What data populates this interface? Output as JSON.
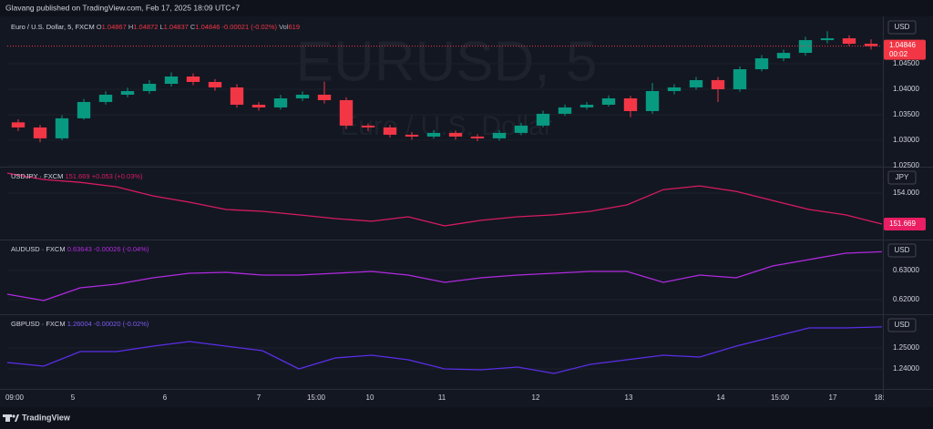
{
  "header": {
    "text": "Glavang published on TradingView.com, Feb 17, 2025 18:09 UTC+7"
  },
  "watermark": {
    "symbol": "EURUSD, 5",
    "description": "Euro / U.S. Dollar"
  },
  "footer": {
    "brand": "TradingView"
  },
  "time_axis": {
    "labels": [
      "09:00",
      "5",
      "6",
      "7",
      "15:00",
      "10",
      "11",
      "12",
      "13",
      "14",
      "15:00",
      "17",
      "18:"
    ]
  },
  "chart_data": [
    {
      "type": "candlestick",
      "title": "Euro / U.S. Dollar, 5, FXCM",
      "currency": "USD",
      "legend": {
        "o_label": "O",
        "open": 1.04867,
        "h_label": "H",
        "high": 1.04872,
        "l_label": "L",
        "low": 1.04837,
        "c_label": "C",
        "close": 1.04846,
        "change": "-0.00021 (-0.02%)",
        "vol_label": "Vol",
        "volume": 619
      },
      "last_price": 1.04846,
      "countdown": "00:02",
      "up_color": "#089981",
      "down_color": "#f23645",
      "open": [
        1.0335,
        1.0325,
        1.03036,
        1.03429,
        1.0375,
        1.03893,
        1.03964,
        1.04107,
        1.0425,
        1.04143,
        1.04036,
        1.03696,
        1.03643,
        1.03821,
        1.03893,
        1.03786,
        1.03286,
        1.0325,
        1.03107,
        1.03071,
        1.03143,
        1.03071,
        1.03036,
        1.03143,
        1.03286,
        1.03518,
        1.03643,
        1.03696,
        1.03821,
        1.03571,
        1.03964,
        1.04036,
        1.04179,
        1.04,
        1.04393,
        1.04607,
        1.04714,
        1.04964,
        1.05,
        1.04893
      ],
      "high": [
        1.0341,
        1.033,
        1.0349,
        1.0381,
        1.0396,
        1.0403,
        1.0418,
        1.0433,
        1.0431,
        1.042,
        1.041,
        1.0375,
        1.0389,
        1.0396,
        1.0415,
        1.0384,
        1.0333,
        1.033,
        1.0316,
        1.032,
        1.0319,
        1.0312,
        1.032,
        1.0334,
        1.0358,
        1.037,
        1.0375,
        1.0388,
        1.0387,
        1.0412,
        1.041,
        1.0424,
        1.0424,
        1.0445,
        1.0467,
        1.0478,
        1.0503,
        1.0514,
        1.0506,
        1.0498
      ],
      "low": [
        1.0318,
        1.0296,
        1.03,
        1.034,
        1.037,
        1.0384,
        1.0391,
        1.0405,
        1.0408,
        1.0397,
        1.0364,
        1.0358,
        1.036,
        1.0377,
        1.0372,
        1.0322,
        1.0318,
        1.0305,
        1.0301,
        1.0303,
        1.0301,
        1.0298,
        1.0299,
        1.031,
        1.0325,
        1.0348,
        1.036,
        1.0366,
        1.0345,
        1.0352,
        1.039,
        1.0399,
        1.0375,
        1.0395,
        1.0435,
        1.0455,
        1.0466,
        1.049,
        1.0485,
        1.0478
      ],
      "close": [
        1.0325,
        1.03036,
        1.03429,
        1.0375,
        1.03893,
        1.03964,
        1.04107,
        1.0425,
        1.04143,
        1.04036,
        1.03696,
        1.03643,
        1.03821,
        1.03893,
        1.03786,
        1.03286,
        1.0325,
        1.03107,
        1.03071,
        1.03143,
        1.03071,
        1.03036,
        1.03143,
        1.03286,
        1.03518,
        1.03643,
        1.03696,
        1.03821,
        1.03571,
        1.03964,
        1.04036,
        1.04179,
        1.04,
        1.04393,
        1.04607,
        1.04714,
        1.04964,
        1.05,
        1.04893,
        1.04846
      ],
      "ylim": [
        1.0248,
        1.0543
      ],
      "yticks": [
        {
          "value": 1.025,
          "label": "1.02500"
        },
        {
          "value": 1.03,
          "label": "1.03000"
        },
        {
          "value": 1.035,
          "label": "1.03500"
        },
        {
          "value": 1.04,
          "label": "1.04000"
        },
        {
          "value": 1.045,
          "label": "1.04500"
        }
      ]
    },
    {
      "type": "line",
      "title": "USDJPY · FXCM",
      "currency": "JPY",
      "last": 151.669,
      "change": "+0.053 (+0.03%)",
      "badge_color": "#e91e63",
      "series": [
        {
          "name": "USDJPY",
          "color": "#d81b60",
          "values": [
            155.51,
            155.03,
            154.82,
            154.48,
            153.79,
            153.32,
            152.77,
            152.63,
            152.36,
            152.08,
            151.88,
            152.22,
            151.53,
            151.95,
            152.22,
            152.36,
            152.63,
            153.11,
            154.27,
            154.55,
            154.14,
            153.45,
            152.77,
            152.36,
            151.669
          ]
        }
      ],
      "ylim": [
        150.5,
        156
      ],
      "yticks": [
        {
          "value": 154,
          "label": "154.000"
        }
      ]
    },
    {
      "type": "line",
      "title": "AUDUSD · FXCM",
      "currency": "USD",
      "last": 0.63643,
      "change": "-0.00026 (-0.04%)",
      "series": [
        {
          "name": "AUDUSD",
          "color": "#b02ae0",
          "values": [
            0.62188,
            0.61969,
            0.62406,
            0.62531,
            0.6275,
            0.62906,
            0.62938,
            0.62844,
            0.62844,
            0.62906,
            0.62969,
            0.62844,
            0.62594,
            0.6275,
            0.62844,
            0.62906,
            0.62969,
            0.62969,
            0.62594,
            0.62844,
            0.6275,
            0.63156,
            0.63375,
            0.63594,
            0.63643
          ]
        }
      ],
      "ylim": [
        0.615,
        0.64063
      ],
      "yticks": [
        {
          "value": 0.62,
          "label": "0.62000"
        },
        {
          "value": 0.63,
          "label": "0.63000"
        }
      ]
    },
    {
      "type": "line",
      "title": "GBPUSD · FXCM",
      "currency": "USD",
      "last": 1.26004,
      "change": "-0.00020 (-0.02%)",
      "series": [
        {
          "name": "GBPUSD",
          "color": "#5a2ee8",
          "values": [
            1.24304,
            1.2413,
            1.24826,
            1.24826,
            1.25087,
            1.25304,
            1.25087,
            1.2487,
            1.24,
            1.24522,
            1.24652,
            1.24435,
            1.24,
            1.23957,
            1.24087,
            1.23783,
            1.24217,
            1.24435,
            1.24652,
            1.24565,
            1.25087,
            1.25522,
            1.25957,
            1.25957,
            1.26004
          ]
        }
      ],
      "ylim": [
        1.23043,
        1.26609
      ],
      "yticks": [
        {
          "value": 1.24,
          "label": "1.24000"
        },
        {
          "value": 1.25,
          "label": "1.25000"
        }
      ]
    }
  ]
}
